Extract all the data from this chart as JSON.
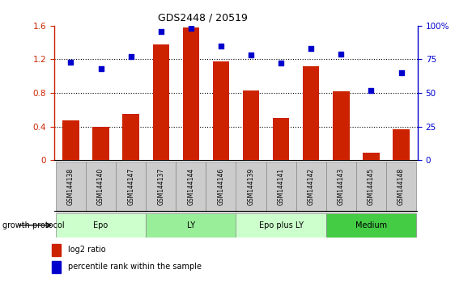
{
  "title": "GDS2448 / 20519",
  "samples": [
    "GSM144138",
    "GSM144140",
    "GSM144147",
    "GSM144137",
    "GSM144144",
    "GSM144146",
    "GSM144139",
    "GSM144141",
    "GSM144142",
    "GSM144143",
    "GSM144145",
    "GSM144148"
  ],
  "log2_ratio": [
    0.47,
    0.4,
    0.55,
    1.38,
    1.58,
    1.18,
    0.83,
    0.5,
    1.12,
    0.82,
    0.09,
    0.37
  ],
  "percentile_rank": [
    73,
    68,
    77,
    96,
    98,
    85,
    78,
    72,
    83,
    79,
    52,
    65
  ],
  "bar_color": "#cc2200",
  "dot_color": "#0000cc",
  "ylim_left": [
    0,
    1.6
  ],
  "ylim_right": [
    0,
    100
  ],
  "yticks_left": [
    0,
    0.4,
    0.8,
    1.2,
    1.6
  ],
  "yticks_right": [
    0,
    25,
    50,
    75,
    100
  ],
  "yticklabels_left": [
    "0",
    "0.4",
    "0.8",
    "1.2",
    "1.6"
  ],
  "yticklabels_right": [
    "0",
    "25",
    "50",
    "75",
    "100%"
  ],
  "groups": [
    {
      "label": "Epo",
      "start": 0,
      "end": 3,
      "color": "#ccffcc"
    },
    {
      "label": "LY",
      "start": 3,
      "end": 6,
      "color": "#99ee99"
    },
    {
      "label": "Epo plus LY",
      "start": 6,
      "end": 9,
      "color": "#ccffcc"
    },
    {
      "label": "Medium",
      "start": 9,
      "end": 12,
      "color": "#44cc44"
    }
  ],
  "group_protocol_label": "growth protocol",
  "legend_items": [
    {
      "color": "#cc2200",
      "label": "log2 ratio"
    },
    {
      "color": "#0000cc",
      "label": "percentile rank within the sample"
    }
  ],
  "sample_label_bg": "#cccccc",
  "sample_label_border": "#888888"
}
